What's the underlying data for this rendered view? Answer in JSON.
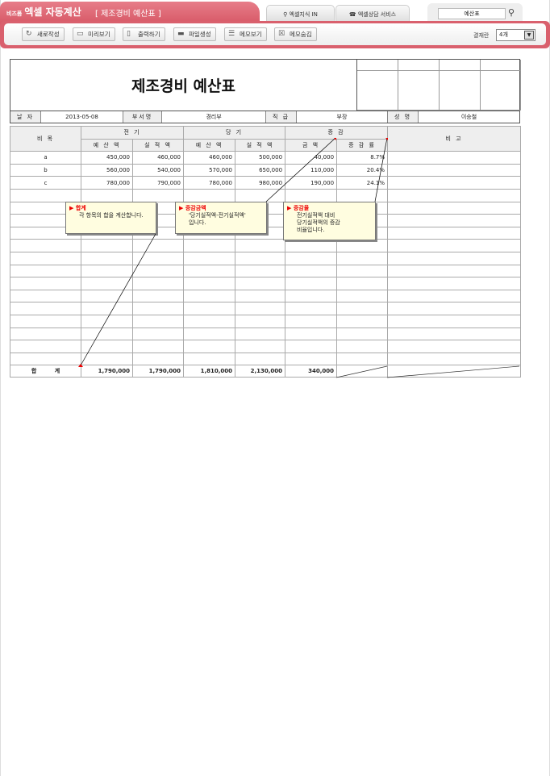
{
  "header": {
    "brand_small": "비즈폼",
    "brand": "엑셀 자동계산",
    "doc_title": "[ 제조경비 예산표 ]",
    "tabs": [
      {
        "label": "엑셀지식 IN",
        "icon": "pin-icon"
      },
      {
        "label": "엑셀상담 서비스",
        "icon": "phone-icon"
      }
    ],
    "search_value": "예산표"
  },
  "toolbar": {
    "buttons": [
      {
        "label": "새로작성",
        "icon": "refresh-icon"
      },
      {
        "label": "미리보기",
        "icon": "monitor-icon"
      },
      {
        "label": "출력하기",
        "icon": "print-icon"
      },
      {
        "label": "파일생성",
        "icon": "folder-icon"
      },
      {
        "label": "메모보기",
        "icon": "memo-icon"
      },
      {
        "label": "메모숨김",
        "icon": "memo-hide-icon"
      }
    ],
    "view_label": "결재란",
    "view_value": "4개"
  },
  "document": {
    "title": "제조경비 예산표",
    "info": {
      "date_label": "날 자",
      "date": "2013-05-08",
      "dept_label": "부서명",
      "dept": "경리부",
      "rank_label": "직 급",
      "rank": "부장",
      "name_label": "성 명",
      "name": "이승철"
    },
    "headers": {
      "item": "비 목",
      "prev": "전 기",
      "curr": "당 기",
      "diff": "증 감",
      "note": "비 고",
      "budget": "예 산 액",
      "actual": "실 적 액",
      "amount": "금 액",
      "rate": "증 감 률"
    },
    "rows": [
      {
        "item": "a",
        "prev_budget": "450,000",
        "prev_actual": "460,000",
        "curr_budget": "460,000",
        "curr_actual": "500,000",
        "diff_amount": "40,000",
        "diff_rate": "8.7%"
      },
      {
        "item": "b",
        "prev_budget": "560,000",
        "prev_actual": "540,000",
        "curr_budget": "570,000",
        "curr_actual": "650,000",
        "diff_amount": "110,000",
        "diff_rate": "20.4%"
      },
      {
        "item": "c",
        "prev_budget": "780,000",
        "prev_actual": "790,000",
        "curr_budget": "780,000",
        "curr_actual": "980,000",
        "diff_amount": "190,000",
        "diff_rate": "24.1%"
      }
    ],
    "total": {
      "label": "합 계",
      "prev_budget": "1,790,000",
      "prev_actual": "1,790,000",
      "curr_budget": "1,810,000",
      "curr_actual": "2,130,000",
      "diff_amount": "340,000"
    }
  },
  "memos": [
    {
      "title": "합계",
      "body": "각 항목의 합을 계산합니다."
    },
    {
      "title": "증감금액",
      "body": "'당기실적액-전기실적액'\n입니다."
    },
    {
      "title": "증감율",
      "body": "전기실적액 대비\n당기실적액의 증감\n비율입니다."
    }
  ]
}
